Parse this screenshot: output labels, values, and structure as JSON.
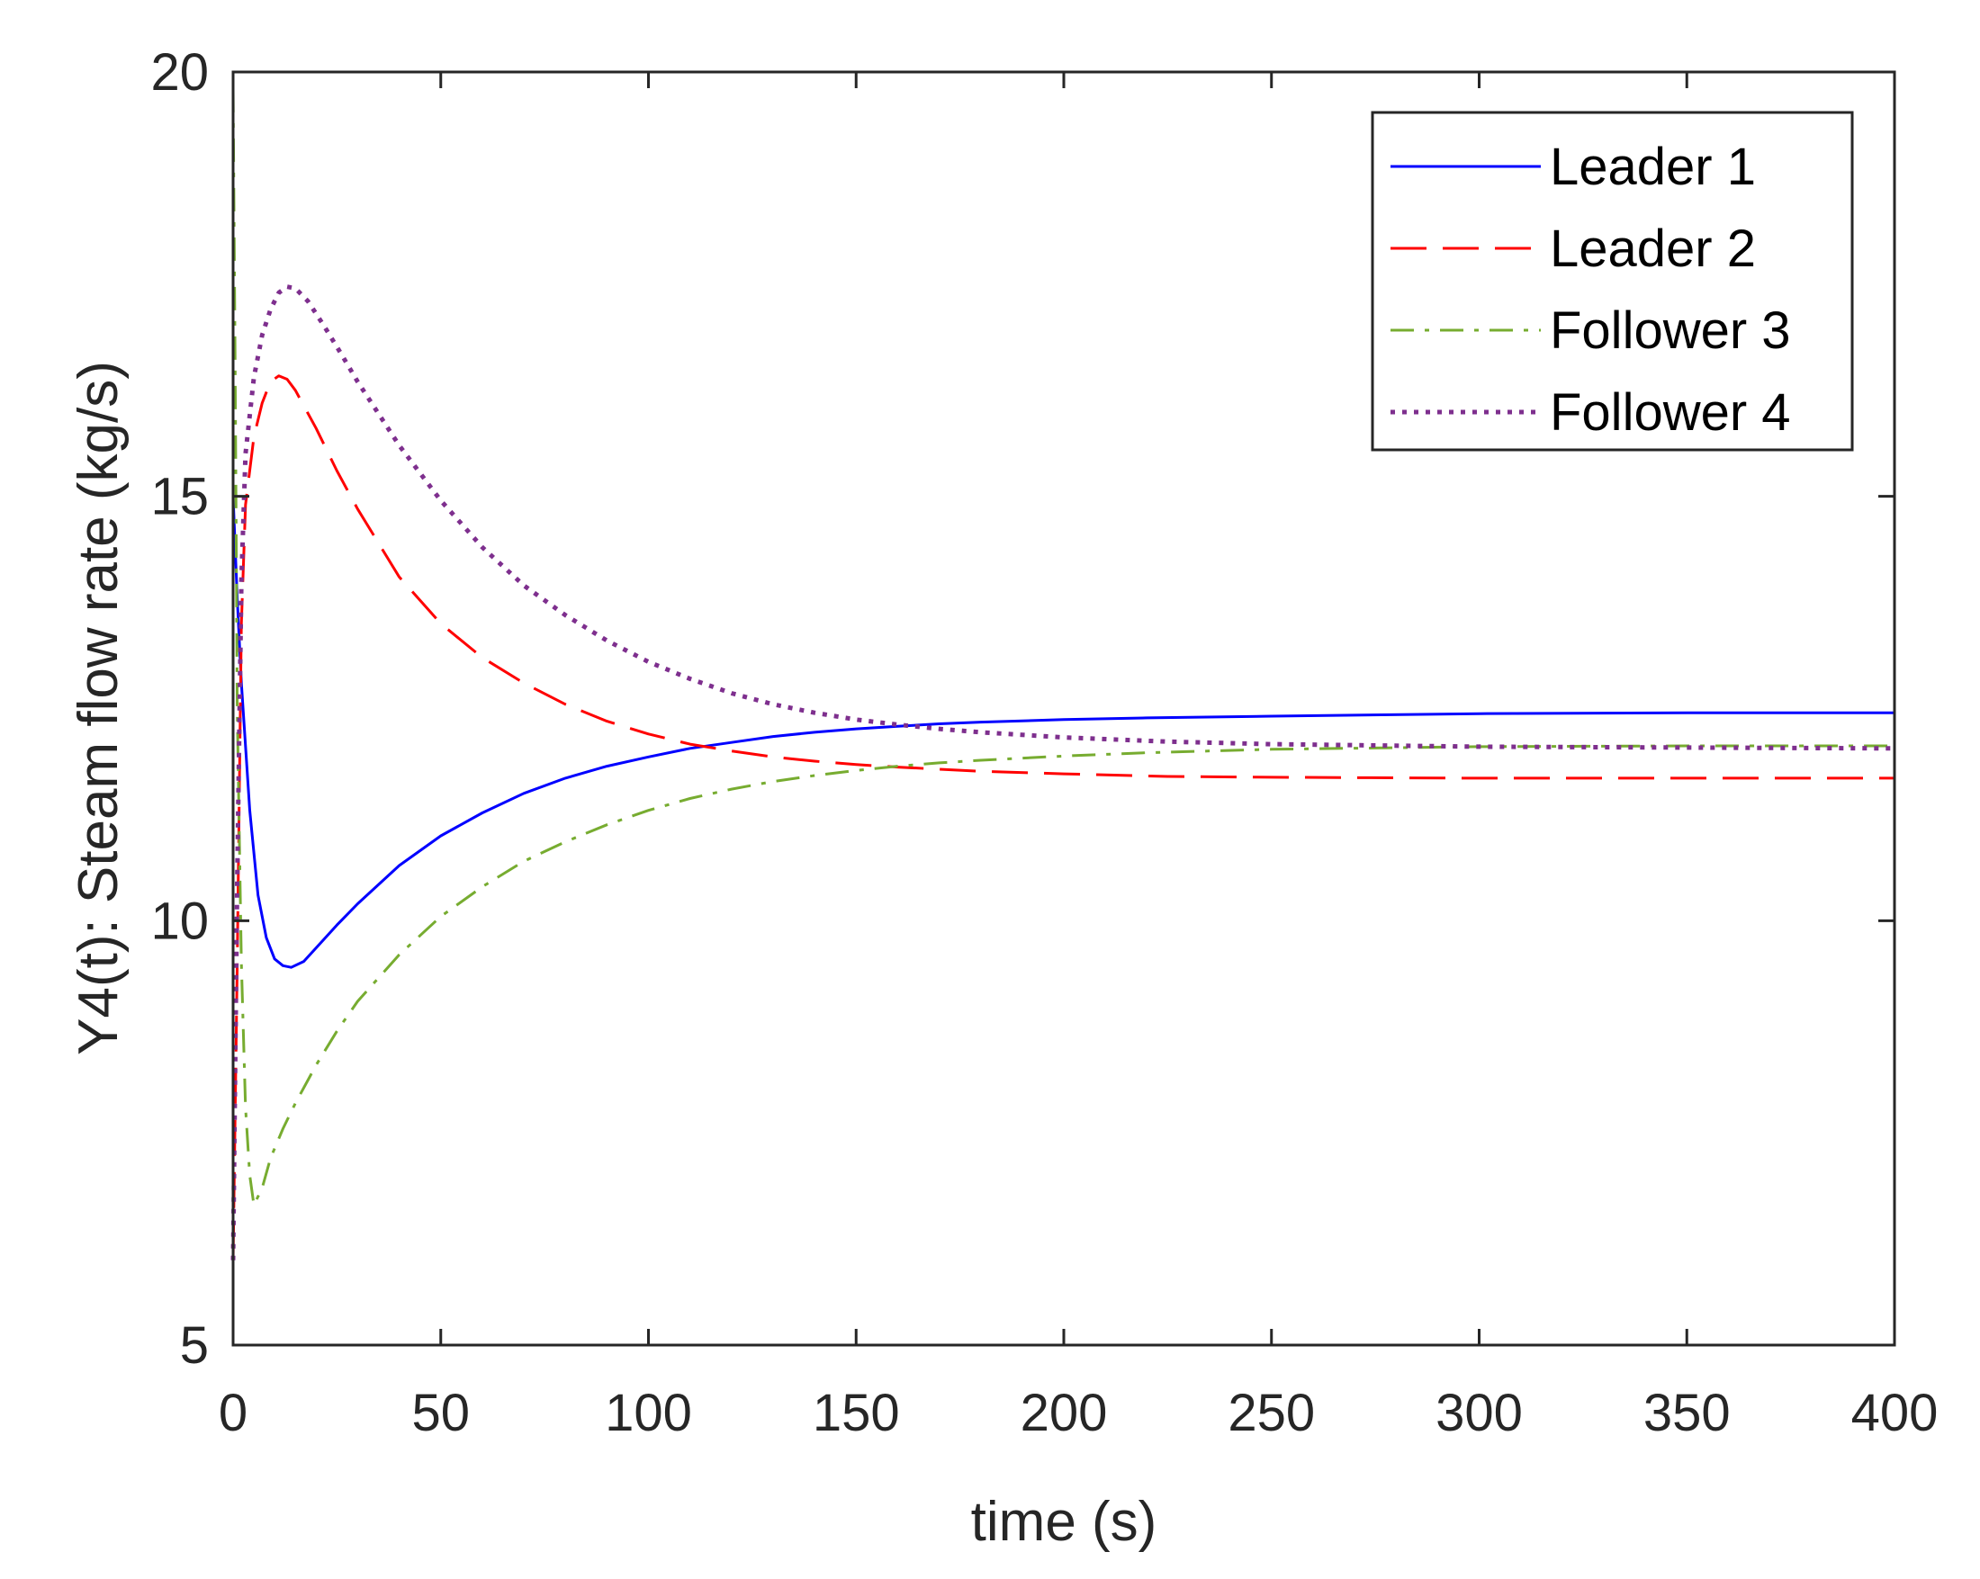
{
  "chart_data": {
    "type": "line",
    "xlabel": "time (s)",
    "ylabel": "Y4(t): Steam flow rate (kg/s)",
    "xlim": [
      0,
      400
    ],
    "ylim": [
      5,
      20
    ],
    "xticks": [
      0,
      50,
      100,
      150,
      200,
      250,
      300,
      350,
      400
    ],
    "yticks": [
      5,
      10,
      15,
      20
    ],
    "grid": false,
    "legend_position": "top-right",
    "series": [
      {
        "name": "Leader 1",
        "color": "#0000ff",
        "style": "solid",
        "x": [
          0,
          1,
          2,
          4,
          6,
          8,
          10,
          12,
          14,
          17,
          20,
          25,
          30,
          40,
          50,
          60,
          70,
          80,
          90,
          100,
          110,
          120,
          130,
          140,
          150,
          160,
          170,
          180,
          200,
          220,
          250,
          300,
          350,
          400
        ],
        "y": [
          15.0,
          13.8,
          12.8,
          11.3,
          10.3,
          9.8,
          9.55,
          9.47,
          9.45,
          9.52,
          9.68,
          9.95,
          10.2,
          10.65,
          11.0,
          11.27,
          11.5,
          11.68,
          11.82,
          11.93,
          12.03,
          12.1,
          12.17,
          12.22,
          12.26,
          12.29,
          12.32,
          12.34,
          12.37,
          12.39,
          12.41,
          12.44,
          12.45,
          12.45
        ]
      },
      {
        "name": "Leader 2",
        "color": "#ff0000",
        "style": "dashed",
        "x": [
          0,
          1,
          2,
          3,
          5,
          7,
          9,
          11,
          13,
          15,
          20,
          25,
          30,
          40,
          50,
          60,
          70,
          80,
          90,
          100,
          110,
          120,
          130,
          140,
          150,
          160,
          180,
          200,
          225,
          250,
          300,
          350,
          400
        ],
        "y": [
          6.0,
          9.5,
          13.5,
          14.9,
          15.7,
          16.1,
          16.35,
          16.42,
          16.38,
          16.25,
          15.8,
          15.3,
          14.85,
          14.05,
          13.5,
          13.1,
          12.8,
          12.55,
          12.35,
          12.2,
          12.08,
          12.0,
          11.93,
          11.88,
          11.84,
          11.81,
          11.76,
          11.73,
          11.7,
          11.69,
          11.68,
          11.68,
          11.68
        ]
      },
      {
        "name": "Follower 3",
        "color": "#77ac30",
        "style": "dashdot",
        "x": [
          0,
          0.5,
          1,
          2,
          3,
          4,
          5,
          7,
          9,
          12,
          15,
          20,
          25,
          30,
          40,
          50,
          60,
          70,
          80,
          90,
          100,
          110,
          120,
          130,
          140,
          150,
          160,
          170,
          180,
          200,
          220,
          250,
          300,
          350,
          400
        ],
        "y": [
          19.8,
          16.5,
          12.5,
          9.5,
          7.8,
          7.0,
          6.65,
          6.85,
          7.2,
          7.55,
          7.85,
          8.3,
          8.7,
          9.05,
          9.6,
          10.05,
          10.4,
          10.7,
          10.93,
          11.13,
          11.3,
          11.44,
          11.55,
          11.64,
          11.71,
          11.77,
          11.82,
          11.86,
          11.89,
          11.94,
          11.98,
          12.02,
          12.05,
          12.06,
          12.06
        ]
      },
      {
        "name": "Follower 4",
        "color": "#7e2f8e",
        "style": "dotted",
        "x": [
          0,
          1,
          2,
          3,
          5,
          7,
          9,
          11,
          13,
          15,
          18,
          22,
          26,
          30,
          40,
          50,
          60,
          70,
          80,
          90,
          100,
          110,
          120,
          130,
          140,
          150,
          160,
          170,
          180,
          200,
          225,
          250,
          300,
          350,
          400
        ],
        "y": [
          6.0,
          10.5,
          14.0,
          15.5,
          16.4,
          16.9,
          17.2,
          17.4,
          17.47,
          17.45,
          17.3,
          17.0,
          16.68,
          16.35,
          15.6,
          14.95,
          14.4,
          13.95,
          13.6,
          13.3,
          13.05,
          12.85,
          12.68,
          12.55,
          12.45,
          12.37,
          12.31,
          12.26,
          12.22,
          12.16,
          12.11,
          12.08,
          12.05,
          12.04,
          12.03
        ]
      }
    ]
  }
}
